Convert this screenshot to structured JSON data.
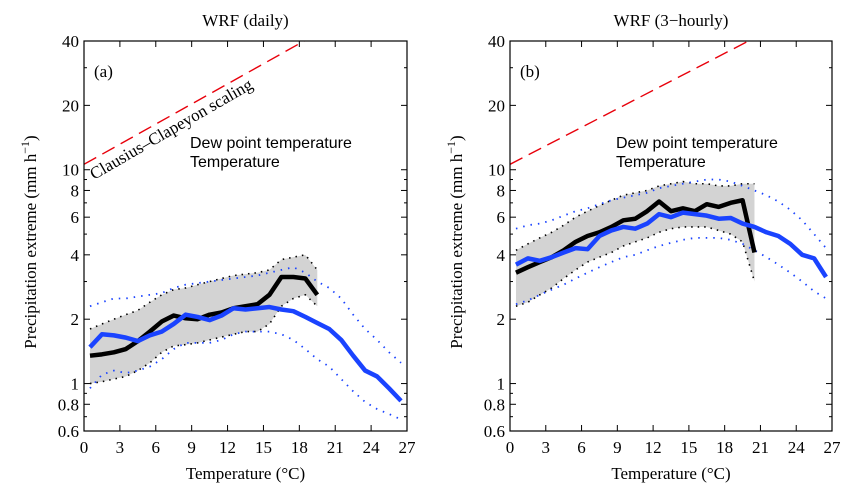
{
  "chart_data": [
    {
      "type": "line",
      "title": "WRF (daily)",
      "panel_label": "(a)",
      "xlabel": "Temperature (°C)",
      "ylabel": "Precipitation extreme (mm h$^{-1}$)",
      "ylabel_text": "Precipitation extreme (mm h",
      "ylabel_sup": "−1",
      "ylabel_end": ")",
      "xlim": [
        0,
        27
      ],
      "ylim": [
        0.6,
        40
      ],
      "yscale": "log",
      "xticks": [
        0,
        3,
        6,
        9,
        12,
        15,
        18,
        21,
        24,
        27
      ],
      "yticks": [
        0.6,
        0.8,
        1,
        2,
        4,
        6,
        8,
        10,
        20,
        40
      ],
      "ytick_labels": [
        "0.6",
        "0.8",
        "1",
        "2",
        "4",
        "6",
        "8",
        "10",
        "20",
        "40"
      ],
      "legend": [
        "Dew point temperature",
        "Temperature"
      ],
      "annotation": "Clausius–Clapeyon scaling",
      "reference_line": {
        "name": "Clausius–Clapeyon scaling",
        "color": "#e8000b",
        "x": [
          0,
          18.4
        ],
        "y": [
          10.6,
          40
        ]
      },
      "series": [
        {
          "name": "Dew point temperature",
          "color": "#000000",
          "x": [
            0.5,
            1.5,
            2.5,
            3.5,
            4.5,
            5.5,
            6.5,
            7.5,
            8.5,
            9.5,
            10.5,
            11.5,
            12.5,
            13.5,
            14.5,
            15.5,
            16.5,
            17.5,
            18.5,
            19.5
          ],
          "y": [
            1.35,
            1.37,
            1.4,
            1.45,
            1.58,
            1.75,
            1.95,
            2.08,
            2.02,
            2.0,
            2.1,
            2.15,
            2.25,
            2.3,
            2.35,
            2.6,
            3.15,
            3.15,
            3.1,
            2.6
          ],
          "band_upper": [
            1.8,
            1.9,
            2.0,
            2.1,
            2.2,
            2.4,
            2.6,
            2.75,
            2.8,
            2.9,
            3.0,
            3.1,
            3.2,
            3.25,
            3.3,
            3.4,
            3.8,
            3.9,
            4.0,
            3.4
          ],
          "band_lower": [
            1.0,
            1.02,
            1.05,
            1.08,
            1.15,
            1.25,
            1.4,
            1.5,
            1.52,
            1.55,
            1.6,
            1.65,
            1.7,
            1.75,
            1.75,
            1.9,
            2.3,
            2.5,
            2.6,
            2.3
          ]
        },
        {
          "name": "Temperature",
          "color": "#1a43ff",
          "x": [
            0.5,
            1.5,
            2.5,
            3.5,
            4.5,
            5.5,
            6.5,
            7.5,
            8.5,
            9.5,
            10.5,
            11.5,
            12.5,
            13.5,
            14.5,
            15.5,
            16.5,
            17.5,
            18.5,
            19.5,
            20.5,
            21.5,
            22.5,
            23.5,
            24.5,
            25.5,
            26.5
          ],
          "y": [
            1.48,
            1.7,
            1.68,
            1.64,
            1.58,
            1.68,
            1.75,
            1.9,
            2.1,
            2.05,
            1.98,
            2.08,
            2.25,
            2.22,
            2.25,
            2.28,
            2.22,
            2.18,
            2.05,
            1.92,
            1.8,
            1.6,
            1.35,
            1.15,
            1.08,
            0.95,
            0.83
          ],
          "band_upper": [
            2.3,
            2.4,
            2.5,
            2.5,
            2.55,
            2.6,
            2.65,
            2.8,
            2.9,
            2.95,
            3.0,
            3.05,
            3.1,
            3.15,
            3.2,
            3.3,
            3.4,
            3.5,
            3.3,
            3.0,
            2.8,
            2.5,
            2.1,
            1.8,
            1.6,
            1.4,
            1.25
          ],
          "band_lower": [
            0.95,
            1.1,
            1.15,
            1.12,
            1.15,
            1.2,
            1.3,
            1.45,
            1.55,
            1.55,
            1.55,
            1.6,
            1.7,
            1.75,
            1.75,
            1.75,
            1.7,
            1.6,
            1.45,
            1.3,
            1.2,
            1.05,
            0.92,
            0.82,
            0.76,
            0.72,
            0.68
          ]
        }
      ]
    },
    {
      "type": "line",
      "title": "WRF (3−hourly)",
      "panel_label": "(b)",
      "xlabel": "Temperature (°C)",
      "ylabel": "Precipitation extreme (mm h$^{-1}$)",
      "ylabel_text": "Precipitation extreme (mm h",
      "ylabel_sup": "−1",
      "ylabel_end": ")",
      "xlim": [
        0,
        27
      ],
      "ylim": [
        0.6,
        40
      ],
      "yscale": "log",
      "xticks": [
        0,
        3,
        6,
        9,
        12,
        15,
        18,
        21,
        24,
        27
      ],
      "yticks": [
        0.6,
        0.8,
        1,
        2,
        4,
        6,
        8,
        10,
        20,
        40
      ],
      "ytick_labels": [
        "0.6",
        "0.8",
        "1",
        "2",
        "4",
        "6",
        "8",
        "10",
        "20",
        "40"
      ],
      "legend": [
        "Dew point temperature",
        "Temperature"
      ],
      "reference_line": {
        "name": "Clausius–Clapeyon scaling",
        "color": "#e8000b",
        "x": [
          0,
          20.0
        ],
        "y": [
          10.6,
          40
        ]
      },
      "series": [
        {
          "name": "Dew point temperature",
          "color": "#000000",
          "x": [
            0.5,
            1.5,
            2.5,
            3.5,
            4.5,
            5.5,
            6.5,
            7.5,
            8.5,
            9.5,
            10.5,
            11.5,
            12.5,
            13.5,
            14.5,
            15.5,
            16.5,
            17.5,
            18.5,
            19.5,
            20.5
          ],
          "y": [
            3.3,
            3.5,
            3.7,
            3.9,
            4.2,
            4.6,
            4.9,
            5.1,
            5.4,
            5.8,
            5.9,
            6.4,
            7.1,
            6.4,
            6.6,
            6.4,
            6.9,
            6.7,
            7.0,
            7.2,
            4.1
          ],
          "band_upper": [
            4.2,
            4.5,
            4.8,
            5.1,
            5.5,
            6.0,
            6.4,
            6.8,
            7.2,
            7.6,
            7.8,
            8.0,
            8.4,
            8.6,
            8.8,
            8.6,
            8.6,
            8.4,
            8.4,
            8.6,
            8.6
          ],
          "band_lower": [
            2.3,
            2.4,
            2.6,
            2.8,
            3.1,
            3.4,
            3.7,
            3.9,
            4.1,
            4.4,
            4.6,
            4.8,
            5.1,
            5.3,
            5.4,
            5.4,
            5.4,
            5.2,
            5.0,
            4.6,
            3.0
          ]
        },
        {
          "name": "Temperature",
          "color": "#1a43ff",
          "x": [
            0.5,
            1.5,
            2.5,
            3.5,
            4.5,
            5.5,
            6.5,
            7.5,
            8.5,
            9.5,
            10.5,
            11.5,
            12.5,
            13.5,
            14.5,
            15.5,
            16.5,
            17.5,
            18.5,
            19.5,
            20.5,
            21.5,
            22.5,
            23.5,
            24.5,
            25.5,
            26.5
          ],
          "y": [
            3.6,
            3.85,
            3.75,
            3.9,
            4.1,
            4.3,
            4.25,
            4.9,
            5.2,
            5.4,
            5.3,
            5.6,
            6.2,
            6.0,
            6.3,
            6.2,
            6.1,
            5.9,
            5.95,
            5.6,
            5.4,
            5.1,
            4.9,
            4.5,
            4.0,
            3.85,
            3.15
          ],
          "band_upper": [
            5.3,
            5.5,
            5.6,
            5.8,
            6.1,
            6.4,
            6.6,
            6.9,
            7.2,
            7.4,
            7.6,
            7.8,
            8.2,
            8.4,
            8.6,
            8.8,
            9.0,
            9.0,
            8.8,
            8.4,
            8.0,
            7.6,
            7.1,
            6.5,
            5.8,
            5.0,
            4.3
          ],
          "band_lower": [
            2.35,
            2.45,
            2.6,
            2.75,
            2.9,
            3.1,
            3.3,
            3.5,
            3.7,
            3.9,
            4.0,
            4.2,
            4.4,
            4.55,
            4.7,
            4.8,
            4.8,
            4.8,
            4.7,
            4.5,
            4.2,
            3.9,
            3.6,
            3.3,
            3.0,
            2.7,
            2.5
          ]
        }
      ]
    }
  ]
}
